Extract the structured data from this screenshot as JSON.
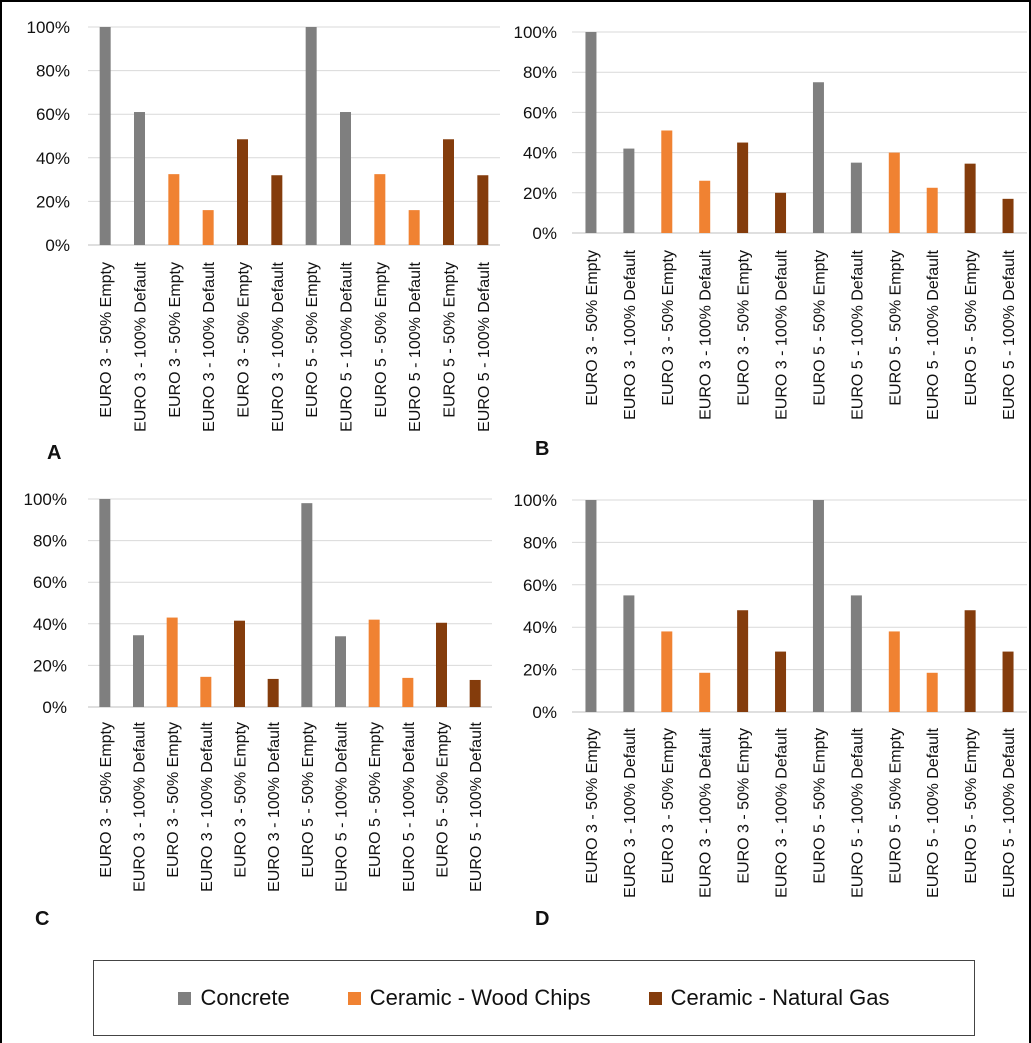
{
  "colors": {
    "Concrete": "#7f7f7f",
    "Ceramic - Wood Chips": "#f08232",
    "Ceramic - Natural Gas": "#843c0c",
    "grid": "#d9d9d9"
  },
  "legend": [
    {
      "name": "Concrete",
      "color": "#7f7f7f"
    },
    {
      "name": "Ceramic - Wood Chips",
      "color": "#f08232"
    },
    {
      "name": "Ceramic - Natural Gas",
      "color": "#843c0c"
    }
  ],
  "chart_data": [
    {
      "panel": "A",
      "type": "bar",
      "ylim": [
        0,
        100
      ],
      "yticks": [
        "0%",
        "20%",
        "40%",
        "60%",
        "80%",
        "100%"
      ],
      "categories": [
        "EURO 3 - 50% Empty",
        "EURO 3 - 100% Default",
        "EURO 3 - 50% Empty",
        "EURO 3 - 100% Default",
        "EURO 3 - 50% Empty",
        "EURO 3 - 100% Default",
        "EURO 5 - 50% Empty",
        "EURO 5 - 100% Default",
        "EURO 5 - 50% Empty",
        "EURO 5 - 100% Default",
        "EURO 5 - 50% Empty",
        "EURO 5 - 100% Default"
      ],
      "series_of_bar": [
        "Concrete",
        "Concrete",
        "Ceramic - Wood Chips",
        "Ceramic - Wood Chips",
        "Ceramic - Natural Gas",
        "Ceramic - Natural Gas",
        "Concrete",
        "Concrete",
        "Ceramic - Wood Chips",
        "Ceramic - Wood Chips",
        "Ceramic - Natural Gas",
        "Ceramic - Natural Gas"
      ],
      "values": [
        100,
        61,
        32.5,
        16,
        48.5,
        32,
        100,
        61,
        32.5,
        16,
        48.5,
        32
      ]
    },
    {
      "panel": "B",
      "type": "bar",
      "ylim": [
        0,
        100
      ],
      "yticks": [
        "0%",
        "20%",
        "40%",
        "60%",
        "80%",
        "100%"
      ],
      "categories": [
        "EURO 3 - 50% Empty",
        "EURO 3 - 100% Default",
        "EURO 3 - 50% Empty",
        "EURO 3 - 100% Default",
        "EURO 3 - 50% Empty",
        "EURO 3 - 100% Default",
        "EURO 5 - 50% Empty",
        "EURO 5 - 100% Default",
        "EURO 5 - 50% Empty",
        "EURO 5 - 100% Default",
        "EURO 5 - 50% Empty",
        "EURO 5 - 100% Default"
      ],
      "series_of_bar": [
        "Concrete",
        "Concrete",
        "Ceramic - Wood Chips",
        "Ceramic - Wood Chips",
        "Ceramic - Natural Gas",
        "Ceramic - Natural Gas",
        "Concrete",
        "Concrete",
        "Ceramic - Wood Chips",
        "Ceramic - Wood Chips",
        "Ceramic - Natural Gas",
        "Ceramic - Natural Gas"
      ],
      "values": [
        100,
        42,
        51,
        26,
        45,
        20,
        75,
        35,
        40,
        22.5,
        34.5,
        17
      ]
    },
    {
      "panel": "C",
      "type": "bar",
      "ylim": [
        0,
        100
      ],
      "yticks": [
        "0%",
        "20%",
        "40%",
        "60%",
        "80%",
        "100%"
      ],
      "categories": [
        "EURO 3 - 50% Empty",
        "EURO 3 - 100% Default",
        "EURO 3 - 50% Empty",
        "EURO 3 - 100% Default",
        "EURO 3 - 50% Empty",
        "EURO 3 - 100% Default",
        "EURO 5 - 50% Empty",
        "EURO 5 - 100% Default",
        "EURO 5 - 50% Empty",
        "EURO 5 - 100% Default",
        "EURO 5 - 50% Empty",
        "EURO 5 - 100% Default"
      ],
      "series_of_bar": [
        "Concrete",
        "Concrete",
        "Ceramic - Wood Chips",
        "Ceramic - Wood Chips",
        "Ceramic - Natural Gas",
        "Ceramic - Natural Gas",
        "Concrete",
        "Concrete",
        "Ceramic - Wood Chips",
        "Ceramic - Wood Chips",
        "Ceramic - Natural Gas",
        "Ceramic - Natural Gas"
      ],
      "values": [
        100,
        34.5,
        43,
        14.5,
        41.5,
        13.5,
        98,
        34,
        42,
        14,
        40.5,
        13
      ]
    },
    {
      "panel": "D",
      "type": "bar",
      "ylim": [
        0,
        100
      ],
      "yticks": [
        "0%",
        "20%",
        "40%",
        "60%",
        "80%",
        "100%"
      ],
      "categories": [
        "EURO 3 - 50% Empty",
        "EURO 3 - 100% Default",
        "EURO 3 - 50% Empty",
        "EURO 3 - 100% Default",
        "EURO 3 - 50% Empty",
        "EURO 3 - 100% Default",
        "EURO 5 - 50% Empty",
        "EURO 5 - 100% Default",
        "EURO 5 - 50% Empty",
        "EURO 5 - 100% Default",
        "EURO 5 - 50% Empty",
        "EURO 5 - 100% Default"
      ],
      "series_of_bar": [
        "Concrete",
        "Concrete",
        "Ceramic - Wood Chips",
        "Ceramic - Wood Chips",
        "Ceramic - Natural Gas",
        "Ceramic - Natural Gas",
        "Concrete",
        "Concrete",
        "Ceramic - Wood Chips",
        "Ceramic - Wood Chips",
        "Ceramic - Natural Gas",
        "Ceramic - Natural Gas"
      ],
      "values": [
        100,
        55,
        38,
        18.5,
        48,
        28.5,
        100,
        55,
        38,
        18.5,
        48,
        28.5
      ]
    }
  ]
}
